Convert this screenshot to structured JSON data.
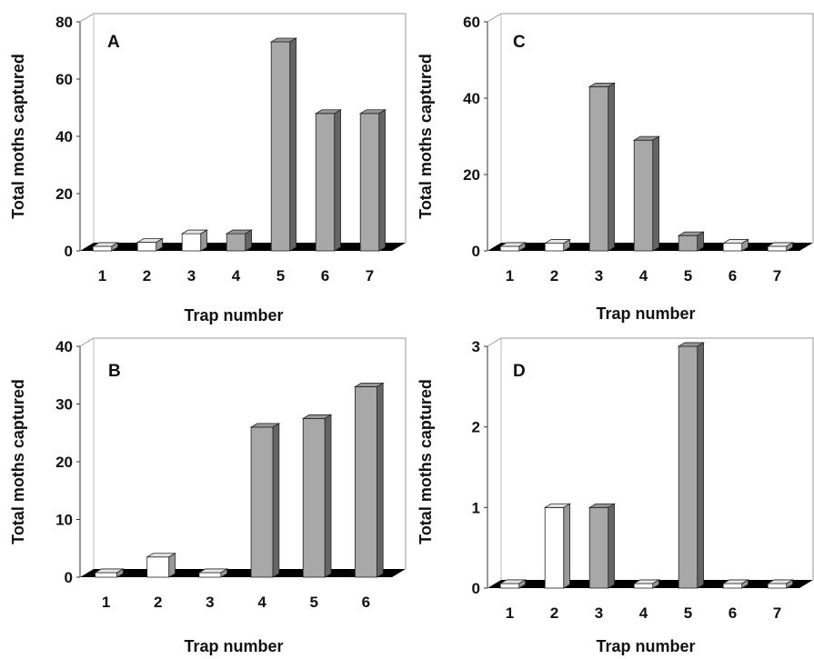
{
  "colors": {
    "filled": "#a8a8a8",
    "open": "#ffffff",
    "floor": "#000000",
    "edge": "#222222"
  },
  "chart_data": [
    {
      "panel": "A",
      "type": "bar",
      "xlabel": "Trap number",
      "ylabel": "Total moths captured",
      "ylim": [
        0,
        80
      ],
      "yticks": [
        "0",
        "20",
        "40",
        "60",
        "80"
      ],
      "categories": [
        "1",
        "2",
        "3",
        "4",
        "5",
        "6",
        "7"
      ],
      "values": [
        1,
        3,
        6,
        6,
        73,
        48,
        48
      ],
      "fill": [
        "open",
        "open",
        "open",
        "filled",
        "filled",
        "filled",
        "filled"
      ]
    },
    {
      "panel": "C",
      "type": "bar",
      "xlabel": "Trap number",
      "ylabel": "Total moths captured",
      "ylim": [
        0,
        60
      ],
      "yticks": [
        "0",
        "20",
        "40",
        "60"
      ],
      "categories": [
        "1",
        "2",
        "3",
        "4",
        "5",
        "6",
        "7"
      ],
      "values": [
        0,
        2,
        43,
        29,
        4,
        2,
        1
      ],
      "fill": [
        "open",
        "open",
        "filled",
        "filled",
        "filled",
        "open",
        "open"
      ]
    },
    {
      "panel": "B",
      "type": "bar",
      "xlabel": "Trap number",
      "ylabel": "Total moths captured",
      "ylim": [
        0,
        40
      ],
      "yticks": [
        "0",
        "10",
        "20",
        "30",
        "40"
      ],
      "categories": [
        "1",
        "2",
        "3",
        "4",
        "5",
        "6"
      ],
      "values": [
        0,
        3.5,
        0,
        26,
        27.5,
        33
      ],
      "fill": [
        "open",
        "open",
        "open",
        "filled",
        "filled",
        "filled"
      ]
    },
    {
      "panel": "D",
      "type": "bar",
      "xlabel": "Trap number",
      "ylabel": "Total moths captured",
      "ylim": [
        0,
        3
      ],
      "yticks": [
        "0",
        "1",
        "2",
        "3"
      ],
      "categories": [
        "1",
        "2",
        "3",
        "4",
        "5",
        "6",
        "7"
      ],
      "values": [
        0,
        1,
        1,
        0,
        3,
        0,
        0
      ],
      "fill": [
        "open",
        "open",
        "filled",
        "open",
        "filled",
        "open",
        "open"
      ]
    }
  ]
}
